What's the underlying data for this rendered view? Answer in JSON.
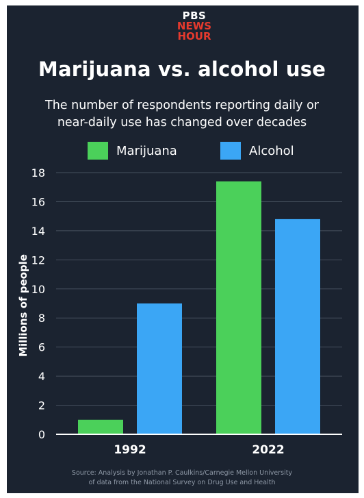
{
  "logo": {
    "line1": "PBS",
    "line2": "NEWS",
    "line3": "HOUR"
  },
  "colors": {
    "background": "#1b2330",
    "marijuana": "#4bd05a",
    "alcohol": "#3ba6f5",
    "grid": "#46505e"
  },
  "chart_data": {
    "type": "bar",
    "title": "Marijuana vs. alcohol use",
    "subtitle_line1": "The number of respondents reporting daily or",
    "subtitle_line2": "near-daily use has changed over decades",
    "xlabel": "",
    "ylabel": "Millions of people",
    "categories": [
      "1992",
      "2022"
    ],
    "series": [
      {
        "name": "Marijuana",
        "color": "#4bd05a",
        "values": [
          1.0,
          17.4
        ]
      },
      {
        "name": "Alcohol",
        "color": "#3ba6f5",
        "values": [
          9.0,
          14.8
        ]
      }
    ],
    "ylim": [
      0,
      18
    ],
    "yticks": [
      "0",
      "2",
      "4",
      "6",
      "8",
      "10",
      "12",
      "14",
      "16",
      "18"
    ],
    "grid": true,
    "legend_position": "top",
    "source_line1": "Source: Analysis by Jonathan P. Caulkins/Carnegie Mellon University",
    "source_line2": "of data from the National Survey on Drug Use and Health"
  }
}
